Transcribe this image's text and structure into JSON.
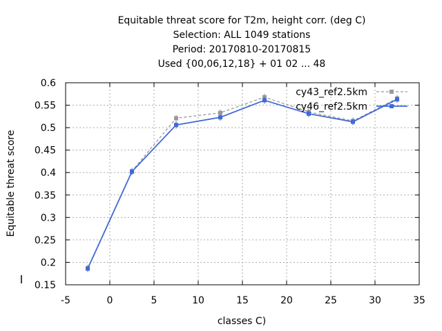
{
  "chart_data": {
    "type": "line",
    "title_lines": [
      "Equitable threat score  for T2m, height corr. (deg C)",
      "Selection: ALL    1049 stations",
      "Period: 20170810-20170815",
      "Used {00,06,12,18} + 01 02 ... 48"
    ],
    "xlabel": "classes C)",
    "ylabel": "Equitable threat score",
    "xlim": [
      -5,
      35
    ],
    "ylim": [
      0.15,
      0.6
    ],
    "xticks": [
      -5,
      0,
      5,
      10,
      15,
      20,
      25,
      30,
      35
    ],
    "yticks": [
      0.15,
      0.2,
      0.25,
      0.3,
      0.35,
      0.4,
      0.45,
      0.5,
      0.55,
      0.6
    ],
    "grid": true,
    "legend_position": "top-right",
    "series": [
      {
        "name": "cy43_ref2.5km",
        "color": "#999999",
        "dashed": true,
        "x": [
          -2.5,
          2.5,
          7.5,
          12.5,
          17.5,
          22.5,
          27.5,
          32.5
        ],
        "y": [
          0.187,
          0.403,
          0.521,
          0.533,
          0.568,
          0.535,
          0.515,
          0.565
        ]
      },
      {
        "name": "cy46_ref2.5km",
        "color": "#4169d8",
        "dashed": false,
        "x": [
          -2.5,
          2.5,
          7.5,
          12.5,
          17.5,
          22.5,
          27.5,
          32.5
        ],
        "y": [
          0.186,
          0.402,
          0.506,
          0.523,
          0.561,
          0.531,
          0.513,
          0.563
        ]
      }
    ]
  }
}
